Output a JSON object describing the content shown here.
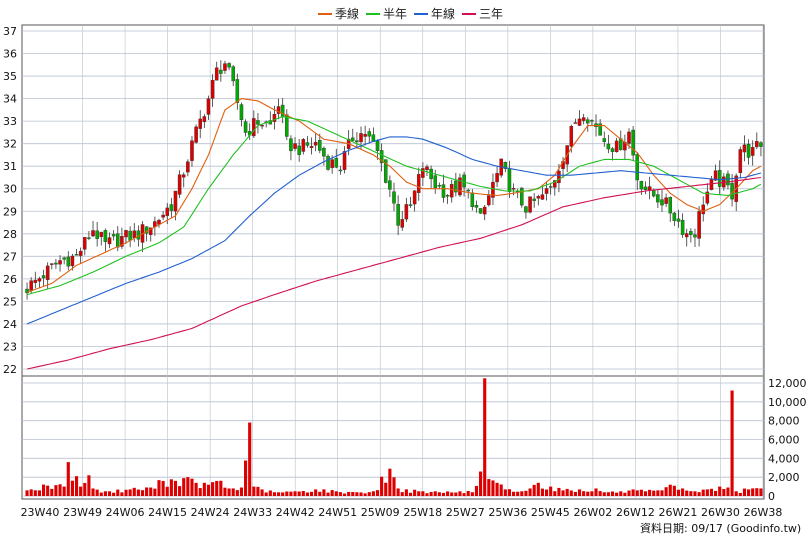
{
  "chart_data": {
    "type": "candlestick",
    "legend": [
      {
        "label": "季線",
        "color": "#e06010"
      },
      {
        "label": "半年",
        "color": "#20c020"
      },
      {
        "label": "年線",
        "color": "#2060d0"
      },
      {
        "label": "三年",
        "color": "#d01050"
      }
    ],
    "colors": {
      "up": "#dd0000",
      "down": "#00aa00",
      "volume": "#dd0000",
      "grid": "#b8c0d0"
    },
    "price_axis": {
      "min": 22,
      "max": 37,
      "ticks": [
        22,
        23,
        24,
        25,
        26,
        27,
        28,
        29,
        30,
        31,
        32,
        33,
        34,
        35,
        36,
        37
      ],
      "side": "left"
    },
    "volume_axis": {
      "min": 0,
      "max": 12000,
      "ticks": [
        "0",
        "2,000",
        "4,000",
        "6,000",
        "8,000",
        "10,000",
        "12,000"
      ],
      "side": "right"
    },
    "x_labels": [
      "23W40",
      "23W49",
      "24W06",
      "24W15",
      "24W24",
      "24W33",
      "24W42",
      "24W51",
      "25W09",
      "25W18",
      "25W27",
      "25W36",
      "25W45",
      "26W02",
      "26W12",
      "26W21",
      "26W30",
      "26W38"
    ],
    "price_anchors": [
      [
        0,
        25.6
      ],
      [
        4,
        26.2
      ],
      [
        8,
        26.8
      ],
      [
        12,
        27.0
      ],
      [
        16,
        28.2
      ],
      [
        19,
        27.5
      ],
      [
        23,
        27.8
      ],
      [
        27,
        28.0
      ],
      [
        31,
        28.5
      ],
      [
        35,
        29.3
      ],
      [
        38,
        30.8
      ],
      [
        41,
        32.5
      ],
      [
        44,
        34.0
      ],
      [
        46,
        35.2
      ],
      [
        48,
        35.6
      ],
      [
        50,
        34.5
      ],
      [
        53,
        32.5
      ],
      [
        56,
        33.0
      ],
      [
        59,
        32.8
      ],
      [
        61,
        33.8
      ],
      [
        63,
        32.0
      ],
      [
        66,
        31.8
      ],
      [
        70,
        32.0
      ],
      [
        73,
        31.2
      ],
      [
        76,
        31.0
      ],
      [
        79,
        32.3
      ],
      [
        82,
        32.5
      ],
      [
        85,
        31.6
      ],
      [
        88,
        30.0
      ],
      [
        90,
        28.6
      ],
      [
        93,
        29.2
      ],
      [
        96,
        31.0
      ],
      [
        99,
        30.2
      ],
      [
        102,
        29.8
      ],
      [
        105,
        30.2
      ],
      [
        108,
        29.5
      ],
      [
        110,
        28.6
      ],
      [
        113,
        30.2
      ],
      [
        115,
        31.0
      ],
      [
        118,
        29.8
      ],
      [
        121,
        29.2
      ],
      [
        124,
        29.5
      ],
      [
        127,
        30.0
      ],
      [
        130,
        31.5
      ],
      [
        133,
        33.0
      ],
      [
        135,
        33.5
      ],
      [
        137,
        33.0
      ],
      [
        140,
        32.2
      ],
      [
        143,
        31.8
      ],
      [
        146,
        32.5
      ],
      [
        148,
        30.5
      ],
      [
        151,
        29.8
      ],
      [
        154,
        29.5
      ],
      [
        157,
        28.8
      ],
      [
        160,
        28.0
      ],
      [
        162,
        28.1
      ],
      [
        164,
        29.5
      ],
      [
        167,
        30.5
      ],
      [
        169,
        30.2
      ],
      [
        171,
        29.8
      ],
      [
        173,
        31.8
      ],
      [
        176,
        31.6
      ],
      [
        178,
        32.0
      ]
    ],
    "volume_anchors": [
      [
        0,
        600
      ],
      [
        5,
        1100
      ],
      [
        9,
        1000
      ],
      [
        10,
        3600
      ],
      [
        13,
        1000
      ],
      [
        15,
        2200
      ],
      [
        16,
        800
      ],
      [
        20,
        500
      ],
      [
        25,
        700
      ],
      [
        30,
        900
      ],
      [
        33,
        1600
      ],
      [
        38,
        1900
      ],
      [
        41,
        1400
      ],
      [
        44,
        1200
      ],
      [
        46,
        1600
      ],
      [
        49,
        800
      ],
      [
        52,
        900
      ],
      [
        54,
        7800
      ],
      [
        55,
        1000
      ],
      [
        57,
        700
      ],
      [
        60,
        400
      ],
      [
        65,
        500
      ],
      [
        70,
        700
      ],
      [
        75,
        500
      ],
      [
        80,
        400
      ],
      [
        84,
        500
      ],
      [
        88,
        2900
      ],
      [
        90,
        800
      ],
      [
        95,
        500
      ],
      [
        100,
        400
      ],
      [
        105,
        500
      ],
      [
        108,
        400
      ],
      [
        110,
        2600
      ],
      [
        111,
        12500
      ],
      [
        112,
        1800
      ],
      [
        114,
        1400
      ],
      [
        116,
        700
      ],
      [
        120,
        500
      ],
      [
        122,
        800
      ],
      [
        124,
        1400
      ],
      [
        127,
        1000
      ],
      [
        130,
        600
      ],
      [
        134,
        700
      ],
      [
        138,
        800
      ],
      [
        140,
        400
      ],
      [
        144,
        500
      ],
      [
        148,
        600
      ],
      [
        150,
        500
      ],
      [
        154,
        600
      ],
      [
        156,
        1200
      ],
      [
        159,
        800
      ],
      [
        162,
        500
      ],
      [
        165,
        700
      ],
      [
        168,
        1000
      ],
      [
        170,
        900
      ],
      [
        171,
        11200
      ],
      [
        172,
        500
      ],
      [
        175,
        700
      ],
      [
        178,
        800
      ]
    ],
    "ma_anchors": {
      "q": [
        [
          0,
          25.4
        ],
        [
          6,
          25.8
        ],
        [
          12,
          26.6
        ],
        [
          18,
          27.1
        ],
        [
          24,
          27.6
        ],
        [
          30,
          28.2
        ],
        [
          36,
          28.8
        ],
        [
          40,
          30.0
        ],
        [
          44,
          31.5
        ],
        [
          48,
          33.5
        ],
        [
          52,
          34.0
        ],
        [
          56,
          33.9
        ],
        [
          60,
          33.5
        ],
        [
          66,
          33.0
        ],
        [
          72,
          32.2
        ],
        [
          78,
          32.0
        ],
        [
          84,
          31.5
        ],
        [
          88,
          31.0
        ],
        [
          92,
          30.3
        ],
        [
          96,
          30.0
        ],
        [
          102,
          30.0
        ],
        [
          108,
          29.8
        ],
        [
          114,
          29.7
        ],
        [
          118,
          29.8
        ],
        [
          124,
          30.0
        ],
        [
          128,
          30.6
        ],
        [
          132,
          31.8
        ],
        [
          136,
          32.8
        ],
        [
          140,
          32.8
        ],
        [
          144,
          32.2
        ],
        [
          148,
          31.6
        ],
        [
          152,
          30.6
        ],
        [
          156,
          29.8
        ],
        [
          160,
          29.3
        ],
        [
          164,
          29.0
        ],
        [
          168,
          29.3
        ],
        [
          172,
          30.0
        ],
        [
          176,
          30.8
        ],
        [
          178,
          31.0
        ]
      ],
      "h": [
        [
          0,
          25.3
        ],
        [
          8,
          25.7
        ],
        [
          16,
          26.3
        ],
        [
          24,
          27.0
        ],
        [
          32,
          27.6
        ],
        [
          38,
          28.3
        ],
        [
          44,
          30.0
        ],
        [
          50,
          31.5
        ],
        [
          56,
          32.8
        ],
        [
          62,
          33.2
        ],
        [
          68,
          33.0
        ],
        [
          74,
          32.5
        ],
        [
          80,
          32.0
        ],
        [
          86,
          31.5
        ],
        [
          92,
          31.0
        ],
        [
          98,
          30.7
        ],
        [
          104,
          30.4
        ],
        [
          110,
          30.1
        ],
        [
          116,
          29.9
        ],
        [
          122,
          29.9
        ],
        [
          128,
          30.3
        ],
        [
          134,
          31.0
        ],
        [
          140,
          31.3
        ],
        [
          146,
          31.3
        ],
        [
          152,
          31.0
        ],
        [
          158,
          30.4
        ],
        [
          164,
          29.8
        ],
        [
          170,
          29.7
        ],
        [
          176,
          30.0
        ],
        [
          178,
          30.2
        ]
      ],
      "y": [
        [
          0,
          24.0
        ],
        [
          8,
          24.6
        ],
        [
          16,
          25.2
        ],
        [
          24,
          25.8
        ],
        [
          32,
          26.3
        ],
        [
          40,
          26.9
        ],
        [
          48,
          27.7
        ],
        [
          54,
          28.8
        ],
        [
          60,
          29.8
        ],
        [
          66,
          30.6
        ],
        [
          72,
          31.2
        ],
        [
          78,
          31.7
        ],
        [
          84,
          32.1
        ],
        [
          88,
          32.3
        ],
        [
          92,
          32.3
        ],
        [
          96,
          32.2
        ],
        [
          102,
          31.8
        ],
        [
          108,
          31.3
        ],
        [
          114,
          31.0
        ],
        [
          120,
          30.8
        ],
        [
          126,
          30.6
        ],
        [
          132,
          30.6
        ],
        [
          138,
          30.7
        ],
        [
          144,
          30.8
        ],
        [
          150,
          30.7
        ],
        [
          156,
          30.6
        ],
        [
          162,
          30.5
        ],
        [
          168,
          30.4
        ],
        [
          174,
          30.5
        ],
        [
          178,
          30.7
        ]
      ],
      "t": [
        [
          0,
          22.0
        ],
        [
          10,
          22.4
        ],
        [
          20,
          22.9
        ],
        [
          30,
          23.3
        ],
        [
          40,
          23.8
        ],
        [
          46,
          24.3
        ],
        [
          52,
          24.8
        ],
        [
          60,
          25.3
        ],
        [
          70,
          25.9
        ],
        [
          80,
          26.4
        ],
        [
          90,
          26.9
        ],
        [
          100,
          27.4
        ],
        [
          110,
          27.8
        ],
        [
          120,
          28.4
        ],
        [
          130,
          29.2
        ],
        [
          140,
          29.6
        ],
        [
          150,
          29.9
        ],
        [
          160,
          30.1
        ],
        [
          170,
          30.3
        ],
        [
          178,
          30.5
        ]
      ]
    },
    "n_bars": 179
  },
  "footer": {
    "text": "資料日期: 09/17 (Goodinfo.tw)"
  }
}
